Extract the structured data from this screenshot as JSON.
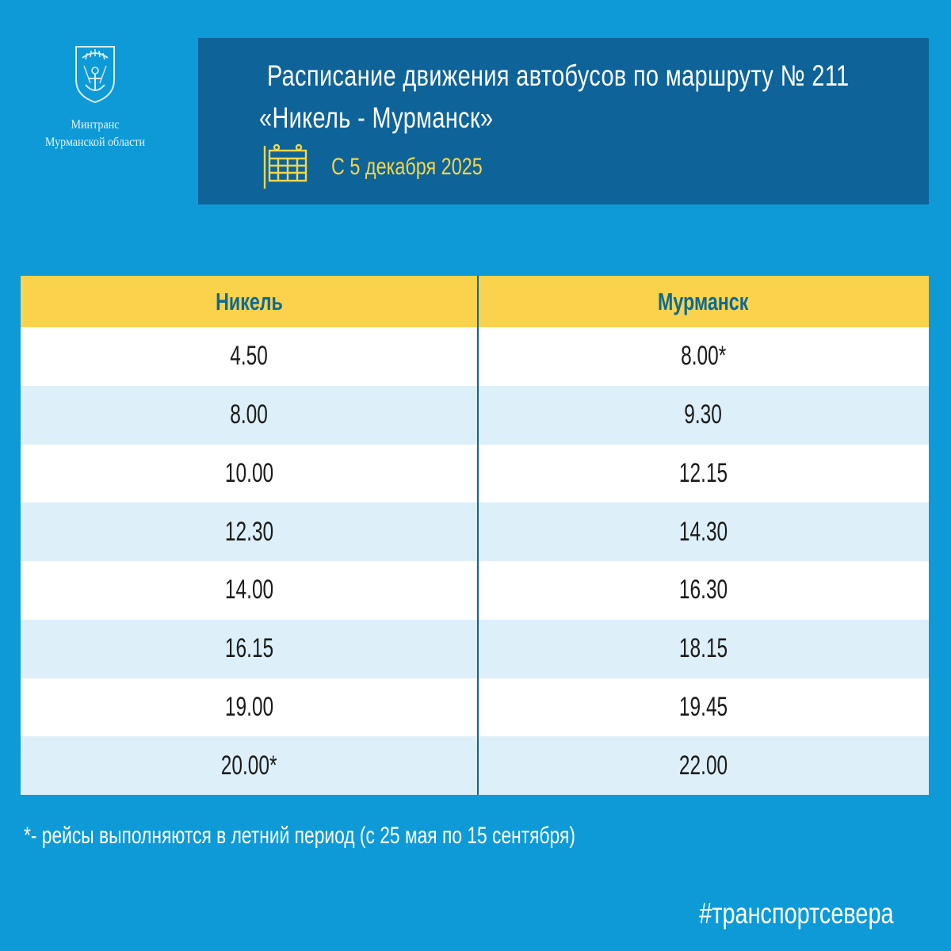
{
  "logo": {
    "icon": "murmansk-region-coat-of-arms",
    "line1": "Минтранс",
    "line2": "Мурманской области"
  },
  "header": {
    "title_line1": "Расписание движения автобусов по маршруту № 211",
    "title_line2": "«Никель - Мурманск»",
    "calendar_icon": "calendar-icon",
    "date_text": "С 5 декабря 2025"
  },
  "schedule": {
    "columns": [
      "Никель",
      "Мурманск"
    ],
    "rows": [
      [
        "4.50",
        "8.00*"
      ],
      [
        "8.00",
        "9.30"
      ],
      [
        "10.00",
        "12.15"
      ],
      [
        "12.30",
        "14.30"
      ],
      [
        "14.00",
        "16.30"
      ],
      [
        "16.15",
        "18.15"
      ],
      [
        "19.00",
        "19.45"
      ],
      [
        "20.00*",
        "22.00"
      ]
    ]
  },
  "footnote": "*- рейсы выполняются в летний период (с 25 мая по 15 сентября)",
  "hashtag": "#транспортсевера",
  "colors": {
    "background": "#0d9ad7",
    "header_box": "#0e6399",
    "table_header": "#fad24c",
    "row_alt": "#ddf0fa",
    "accent_yellow": "#f4d64a"
  }
}
